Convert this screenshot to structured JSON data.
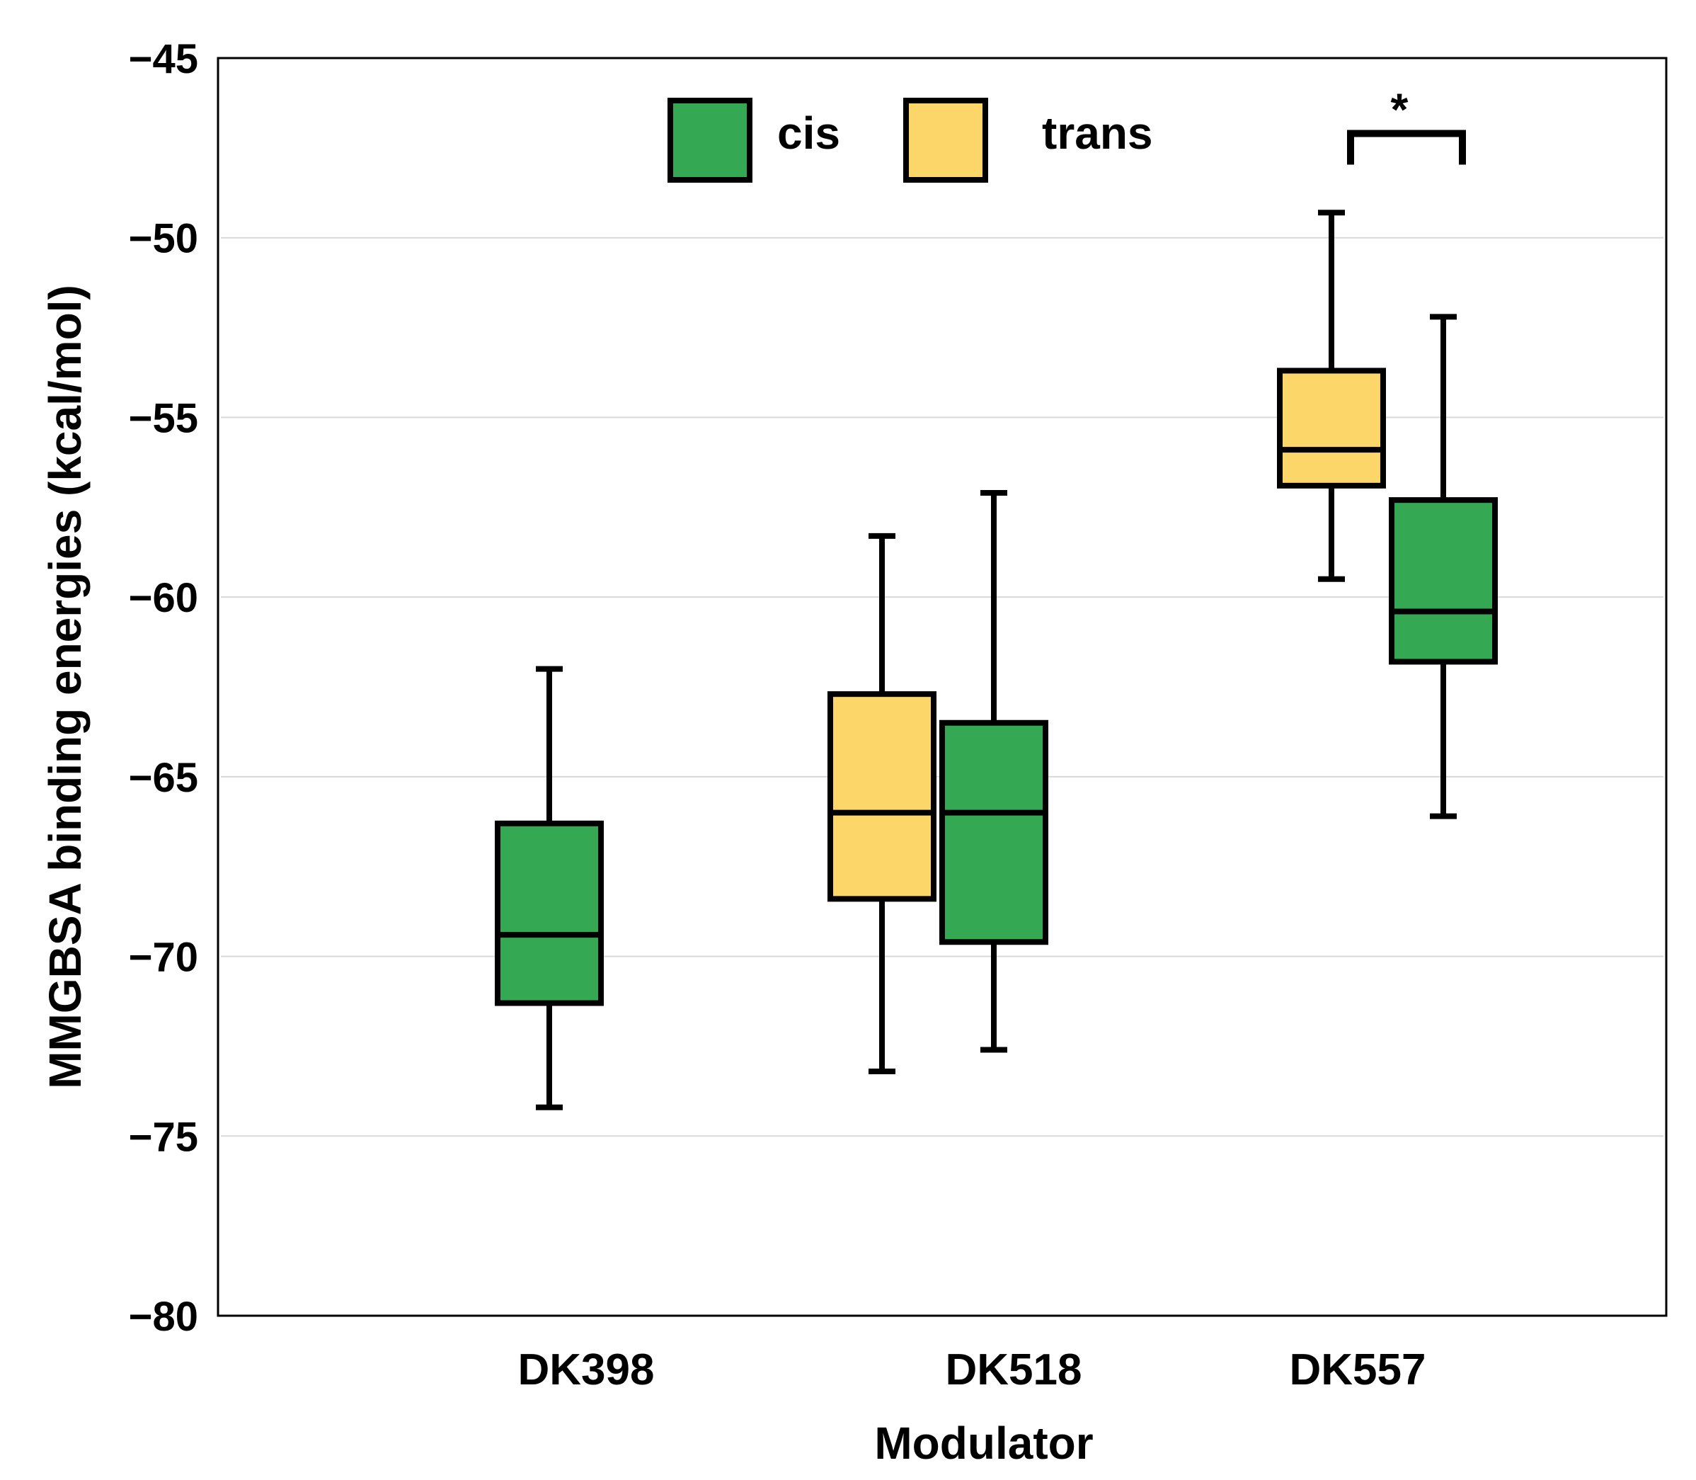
{
  "chart_data": {
    "type": "box",
    "title": "",
    "xlabel": "Modulator",
    "ylabel": "MMGBSA binding energies (kcal/mol)",
    "ylim": [
      -80,
      -45
    ],
    "yticks": [
      -45,
      -50,
      -55,
      -60,
      -65,
      -70,
      -75,
      -80
    ],
    "ytick_labels": [
      "−45",
      "−50",
      "−55",
      "−60",
      "−65",
      "−70",
      "−75",
      "−80"
    ],
    "grid": true,
    "legend_position": "top-center",
    "categories": [
      "DK398",
      "DK518",
      "DK557"
    ],
    "series": [
      {
        "name": "cis",
        "color": "#34a853",
        "boxes": [
          {
            "category": "DK398",
            "whisker_low": -74.2,
            "q1": -71.3,
            "median": -69.4,
            "q3": -66.3,
            "whisker_high": -62.0
          },
          {
            "category": "DK518",
            "whisker_low": -72.6,
            "q1": -69.6,
            "median": -66.0,
            "q3": -63.5,
            "whisker_high": -57.1
          },
          {
            "category": "DK557",
            "whisker_low": -66.1,
            "q1": -61.8,
            "median": -60.4,
            "q3": -57.3,
            "whisker_high": -52.2
          }
        ]
      },
      {
        "name": "trans",
        "color": "#fcd669",
        "boxes": [
          {
            "category": "DK518",
            "whisker_low": -73.2,
            "q1": -68.4,
            "median": -66.0,
            "q3": -62.7,
            "whisker_high": -58.3
          },
          {
            "category": "DK557",
            "whisker_low": -59.5,
            "q1": -56.9,
            "median": -55.9,
            "q3": -53.7,
            "whisker_high": -49.3
          }
        ]
      }
    ],
    "annotations": [
      {
        "category": "DK557",
        "text": "*",
        "type": "significance-bracket",
        "y_value": -47.1
      }
    ]
  }
}
